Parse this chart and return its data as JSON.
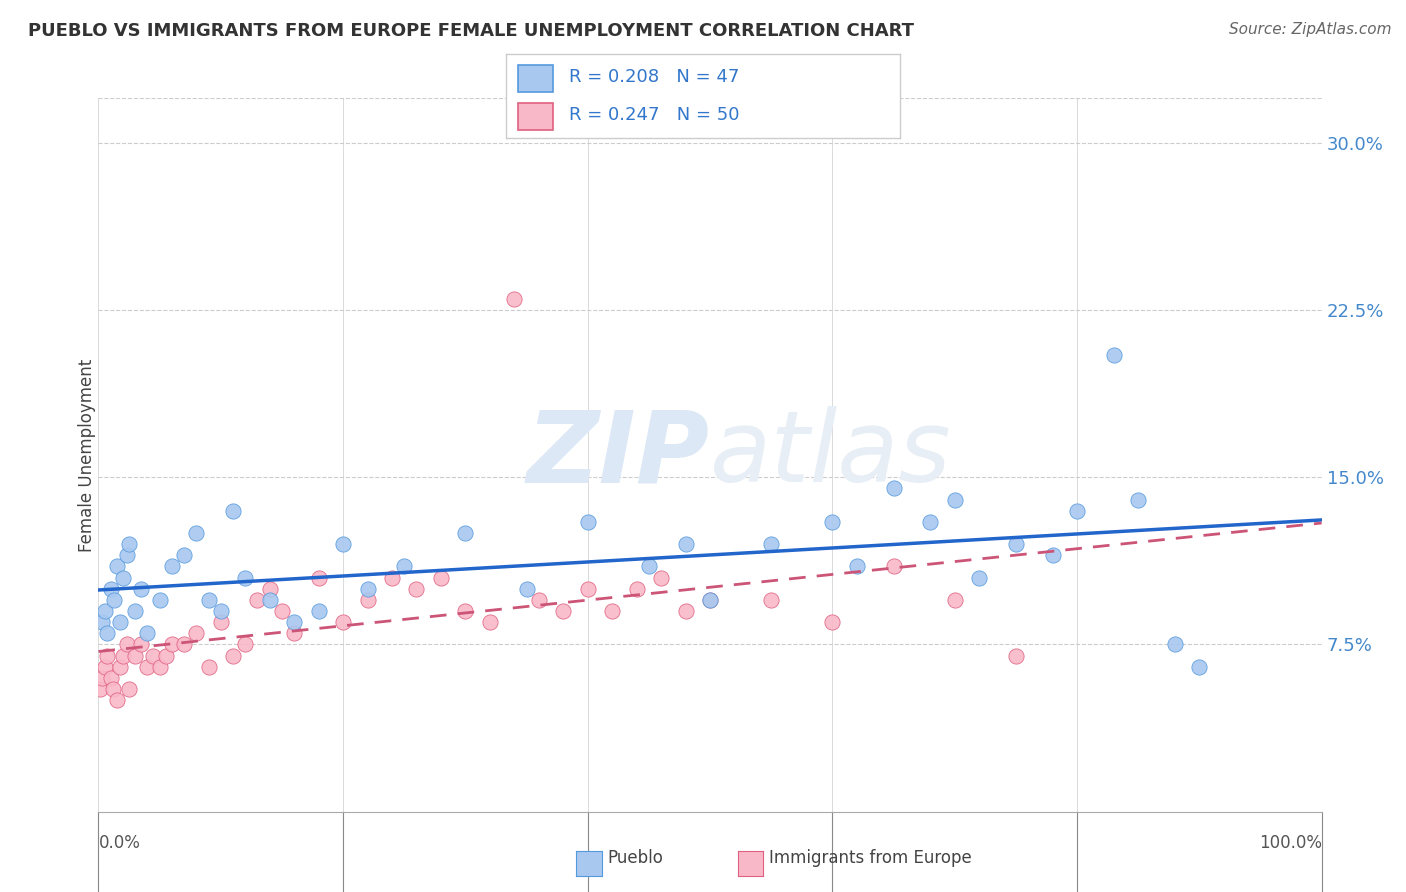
{
  "title": "PUEBLO VS IMMIGRANTS FROM EUROPE FEMALE UNEMPLOYMENT CORRELATION CHART",
  "source": "Source: ZipAtlas.com",
  "ylabel": "Female Unemployment",
  "right_yticks": [
    "7.5%",
    "15.0%",
    "22.5%",
    "30.0%"
  ],
  "right_ytick_vals": [
    7.5,
    15.0,
    22.5,
    30.0
  ],
  "xlim": [
    0,
    100
  ],
  "ylim": [
    0,
    32
  ],
  "pueblo_color": "#a8c8f0",
  "pueblo_edge_color": "#5599dd",
  "immigrants_color": "#f9b8c8",
  "immigrants_edge_color": "#e06080",
  "pueblo_line_color": "#2266cc",
  "immigrants_line_color": "#cc5577",
  "watermark_color": "#e0eaf5",
  "pueblo_scatter_x": [
    0.3,
    0.5,
    0.7,
    1.0,
    1.3,
    1.5,
    1.8,
    2.0,
    2.3,
    2.5,
    3.0,
    3.5,
    4.0,
    5.0,
    6.0,
    7.0,
    8.0,
    9.0,
    10.0,
    11.0,
    12.0,
    14.0,
    16.0,
    18.0,
    20.0,
    22.0,
    25.0,
    30.0,
    35.0,
    40.0,
    45.0,
    48.0,
    50.0,
    55.0,
    60.0,
    62.0,
    65.0,
    68.0,
    70.0,
    72.0,
    75.0,
    78.0,
    80.0,
    83.0,
    85.0,
    88.0,
    90.0
  ],
  "pueblo_scatter_y": [
    8.5,
    9.0,
    8.0,
    10.0,
    9.5,
    11.0,
    8.5,
    10.5,
    11.5,
    12.0,
    9.0,
    10.0,
    8.0,
    9.5,
    11.0,
    11.5,
    12.5,
    9.5,
    9.0,
    13.5,
    10.5,
    9.5,
    8.5,
    9.0,
    12.0,
    10.0,
    11.0,
    12.5,
    10.0,
    13.0,
    11.0,
    12.0,
    9.5,
    12.0,
    13.0,
    11.0,
    14.5,
    13.0,
    14.0,
    10.5,
    12.0,
    11.5,
    13.5,
    20.5,
    14.0,
    7.5,
    6.5
  ],
  "immigrants_scatter_x": [
    0.1,
    0.3,
    0.5,
    0.7,
    1.0,
    1.2,
    1.5,
    1.8,
    2.0,
    2.3,
    2.5,
    3.0,
    3.5,
    4.0,
    4.5,
    5.0,
    5.5,
    6.0,
    7.0,
    8.0,
    9.0,
    10.0,
    11.0,
    12.0,
    13.0,
    14.0,
    15.0,
    16.0,
    18.0,
    20.0,
    22.0,
    24.0,
    26.0,
    28.0,
    30.0,
    32.0,
    34.0,
    36.0,
    38.0,
    40.0,
    42.0,
    44.0,
    46.0,
    48.0,
    50.0,
    55.0,
    60.0,
    65.0,
    70.0,
    75.0
  ],
  "immigrants_scatter_y": [
    5.5,
    6.0,
    6.5,
    7.0,
    6.0,
    5.5,
    5.0,
    6.5,
    7.0,
    7.5,
    5.5,
    7.0,
    7.5,
    6.5,
    7.0,
    6.5,
    7.0,
    7.5,
    7.5,
    8.0,
    6.5,
    8.5,
    7.0,
    7.5,
    9.5,
    10.0,
    9.0,
    8.0,
    10.5,
    8.5,
    9.5,
    10.5,
    10.0,
    10.5,
    9.0,
    8.5,
    23.0,
    9.5,
    9.0,
    10.0,
    9.0,
    10.0,
    10.5,
    9.0,
    9.5,
    9.5,
    8.5,
    11.0,
    9.5,
    7.0
  ],
  "xtick_positions": [
    0,
    20,
    40,
    60,
    80,
    100
  ],
  "ytick_grid_positions": [
    7.5,
    15.0,
    22.5,
    30.0
  ]
}
